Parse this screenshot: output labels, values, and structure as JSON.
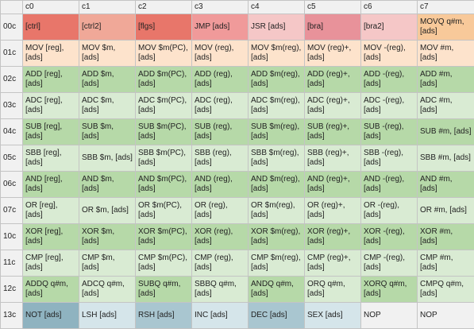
{
  "columns": [
    "c0",
    "c1",
    "c2",
    "c3",
    "c4",
    "c5",
    "c6",
    "c7"
  ],
  "rows": [
    {
      "label": "00c",
      "cells": [
        {
          "text": "[ctrl]",
          "color": "#e8766a"
        },
        {
          "text": "[ctrl2]",
          "color": "#f0a898"
        },
        {
          "text": "[flgs]",
          "color": "#e8766a"
        },
        {
          "text": "JMP [ads]",
          "color": "#f09a9a"
        },
        {
          "text": "JSR [ads]",
          "color": "#f5c7c7"
        },
        {
          "text": "[bra]",
          "color": "#e8929a"
        },
        {
          "text": "[bra2]",
          "color": "#f5c7c7"
        },
        {
          "text": "MOVQ q#m, [ads]",
          "color": "#f8c99a"
        }
      ]
    },
    {
      "label": "01c",
      "cells": [
        {
          "text": "MOV [reg], [ads]",
          "color": "#fde3cc"
        },
        {
          "text": "MOV $m, [ads]",
          "color": "#fde3cc"
        },
        {
          "text": "MOV $m(PC), [ads]",
          "color": "#fde3cc"
        },
        {
          "text": "MOV (reg), [ads]",
          "color": "#fde3cc"
        },
        {
          "text": "MOV $m(reg), [ads]",
          "color": "#fde3cc"
        },
        {
          "text": "MOV (reg)+, [ads]",
          "color": "#fde3cc"
        },
        {
          "text": "MOV -(reg), [ads]",
          "color": "#fde3cc"
        },
        {
          "text": "MOV #m, [ads]",
          "color": "#fde3cc"
        }
      ]
    },
    {
      "label": "02c",
      "cells": [
        {
          "text": "ADD [reg], [ads]",
          "color": "#b6d9a8"
        },
        {
          "text": "ADD $m, [ads]",
          "color": "#b6d9a8"
        },
        {
          "text": "ADD $m(PC), [ads]",
          "color": "#b6d9a8"
        },
        {
          "text": "ADD (reg), [ads]",
          "color": "#b6d9a8"
        },
        {
          "text": "ADD $m(reg), [ads]",
          "color": "#b6d9a8"
        },
        {
          "text": "ADD (reg)+, [ads]",
          "color": "#b6d9a8"
        },
        {
          "text": "ADD -(reg), [ads]",
          "color": "#b6d9a8"
        },
        {
          "text": "ADD #m, [ads]",
          "color": "#b6d9a8"
        }
      ]
    },
    {
      "label": "03c",
      "cells": [
        {
          "text": "ADC [reg], [ads]",
          "color": "#d9ebd3"
        },
        {
          "text": "ADC $m, [ads]",
          "color": "#d9ebd3"
        },
        {
          "text": "ADC $m(PC), [ads]",
          "color": "#d9ebd3"
        },
        {
          "text": "ADC (reg), [ads]",
          "color": "#d9ebd3"
        },
        {
          "text": "ADC $m(reg), [ads]",
          "color": "#d9ebd3"
        },
        {
          "text": "ADC (reg)+, [ads]",
          "color": "#d9ebd3"
        },
        {
          "text": "ADC -(reg), [ads]",
          "color": "#d9ebd3"
        },
        {
          "text": "ADC #m, [ads]",
          "color": "#d9ebd3"
        }
      ]
    },
    {
      "label": "04c",
      "cells": [
        {
          "text": "SUB [reg], [ads]",
          "color": "#b6d9a8"
        },
        {
          "text": "SUB $m, [ads]",
          "color": "#b6d9a8"
        },
        {
          "text": "SUB $m(PC), [ads]",
          "color": "#b6d9a8"
        },
        {
          "text": "SUB (reg), [ads]",
          "color": "#b6d9a8"
        },
        {
          "text": "SUB $m(reg), [ads]",
          "color": "#b6d9a8"
        },
        {
          "text": "SUB (reg)+, [ads]",
          "color": "#b6d9a8"
        },
        {
          "text": "SUB -(reg), [ads]",
          "color": "#b6d9a8"
        },
        {
          "text": "SUB #m, [ads]",
          "color": "#b6d9a8"
        }
      ]
    },
    {
      "label": "05c",
      "cells": [
        {
          "text": "SBB [reg], [ads]",
          "color": "#d9ebd3"
        },
        {
          "text": "SBB $m, [ads]",
          "color": "#d9ebd3"
        },
        {
          "text": "SBB $m(PC), [ads]",
          "color": "#d9ebd3"
        },
        {
          "text": "SBB (reg), [ads]",
          "color": "#d9ebd3"
        },
        {
          "text": "SBB $m(reg), [ads]",
          "color": "#d9ebd3"
        },
        {
          "text": "SBB (reg)+, [ads]",
          "color": "#d9ebd3"
        },
        {
          "text": "SBB -(reg), [ads]",
          "color": "#d9ebd3"
        },
        {
          "text": "SBB #m, [ads]",
          "color": "#d9ebd3"
        }
      ]
    },
    {
      "label": "06c",
      "cells": [
        {
          "text": "AND [reg], [ads]",
          "color": "#b6d9a8"
        },
        {
          "text": "AND $m, [ads]",
          "color": "#b6d9a8"
        },
        {
          "text": "AND $m(PC), [ads]",
          "color": "#b6d9a8"
        },
        {
          "text": "AND (reg), [ads]",
          "color": "#b6d9a8"
        },
        {
          "text": "AND $m(reg), [ads]",
          "color": "#b6d9a8"
        },
        {
          "text": "AND (reg)+, [ads]",
          "color": "#b6d9a8"
        },
        {
          "text": "AND -(reg), [ads]",
          "color": "#b6d9a8"
        },
        {
          "text": "AND #m, [ads]",
          "color": "#b6d9a8"
        }
      ]
    },
    {
      "label": "07c",
      "cells": [
        {
          "text": "OR [reg], [ads]",
          "color": "#d9ebd3"
        },
        {
          "text": "OR $m, [ads]",
          "color": "#d9ebd3"
        },
        {
          "text": "OR $m(PC), [ads]",
          "color": "#d9ebd3"
        },
        {
          "text": "OR (reg), [ads]",
          "color": "#d9ebd3"
        },
        {
          "text": "OR $m(reg), [ads]",
          "color": "#d9ebd3"
        },
        {
          "text": "OR (reg)+, [ads]",
          "color": "#d9ebd3"
        },
        {
          "text": "OR -(reg), [ads]",
          "color": "#d9ebd3"
        },
        {
          "text": "OR #m, [ads]",
          "color": "#d9ebd3"
        }
      ]
    },
    {
      "label": "10c",
      "cells": [
        {
          "text": "XOR [reg], [ads]",
          "color": "#b6d9a8"
        },
        {
          "text": "XOR $m, [ads]",
          "color": "#b6d9a8"
        },
        {
          "text": "XOR $m(PC), [ads]",
          "color": "#b6d9a8"
        },
        {
          "text": "XOR (reg), [ads]",
          "color": "#b6d9a8"
        },
        {
          "text": "XOR $m(reg), [ads]",
          "color": "#b6d9a8"
        },
        {
          "text": "XOR (reg)+, [ads]",
          "color": "#b6d9a8"
        },
        {
          "text": "XOR -(reg), [ads]",
          "color": "#b6d9a8"
        },
        {
          "text": "XOR #m, [ads]",
          "color": "#b6d9a8"
        }
      ]
    },
    {
      "label": "11c",
      "cells": [
        {
          "text": "CMP [reg], [ads]",
          "color": "#d9ebd3"
        },
        {
          "text": "CMP $m, [ads]",
          "color": "#d9ebd3"
        },
        {
          "text": "CMP $m(PC), [ads]",
          "color": "#d9ebd3"
        },
        {
          "text": "CMP (reg), [ads]",
          "color": "#d9ebd3"
        },
        {
          "text": "CMP $m(reg), [ads]",
          "color": "#d9ebd3"
        },
        {
          "text": "CMP (reg)+, [ads]",
          "color": "#d9ebd3"
        },
        {
          "text": "CMP -(reg), [ads]",
          "color": "#d9ebd3"
        },
        {
          "text": "CMP #m, [ads]",
          "color": "#d9ebd3"
        }
      ]
    },
    {
      "label": "12c",
      "cells": [
        {
          "text": "ADDQ q#m, [ads]",
          "color": "#b6d9a8"
        },
        {
          "text": "ADCQ q#m, [ads]",
          "color": "#d9ebd3"
        },
        {
          "text": "SUBQ q#m, [ads]",
          "color": "#b6d9a8"
        },
        {
          "text": "SBBQ q#m, [ads]",
          "color": "#d9ebd3"
        },
        {
          "text": "ANDQ q#m, [ads]",
          "color": "#b6d9a8"
        },
        {
          "text": "ORQ q#m, [ads]",
          "color": "#d9ebd3"
        },
        {
          "text": "XORQ q#m, [ads]",
          "color": "#b6d9a8"
        },
        {
          "text": "CMPQ q#m, [ads]",
          "color": "#d9ebd3"
        }
      ]
    },
    {
      "label": "13c",
      "cells": [
        {
          "text": "NOT [ads]",
          "color": "#8fb3c0"
        },
        {
          "text": "LSH [ads]",
          "color": "#d5e5ea"
        },
        {
          "text": "RSH [ads]",
          "color": "#a9c6d0"
        },
        {
          "text": "INC [ads]",
          "color": "#d5e5ea"
        },
        {
          "text": "DEC [ads]",
          "color": "#a9c6d0"
        },
        {
          "text": "SEX [ads]",
          "color": "#d5e5ea"
        },
        {
          "text": "NOP",
          "color": "#f1f1f1"
        },
        {
          "text": "NOP",
          "color": "#f1f1f1"
        }
      ]
    }
  ]
}
